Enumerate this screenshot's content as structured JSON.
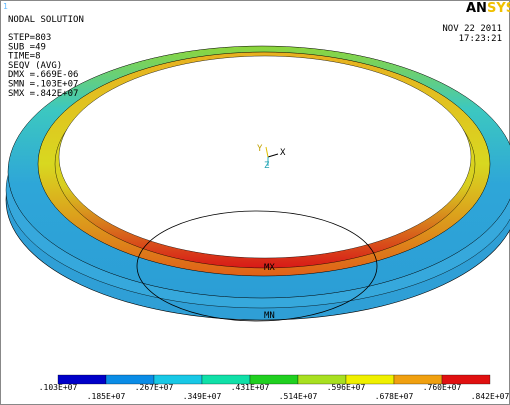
{
  "window_number": "1",
  "header": {
    "title": "NODAL SOLUTION",
    "lines": [
      "STEP=803",
      "SUB =49",
      "TIME=8",
      "SEQV     (AVG)",
      "DMX =.669E-06",
      "SMN =.103E+07",
      "SMX =.842E+07"
    ]
  },
  "logo": {
    "left": "AN",
    "right": "SYS"
  },
  "date": "NOV 22 2011",
  "time": "17:23:21",
  "markers": {
    "max": "MX",
    "min": "MN"
  },
  "triad": {
    "x": "X",
    "y": "Y",
    "z": "Z"
  },
  "legend": {
    "colors": [
      "#0000c8",
      "#0a8ce6",
      "#18c8e6",
      "#10e0a8",
      "#20d020",
      "#a8e020",
      "#f0f000",
      "#f0a010",
      "#e01010"
    ],
    "labels": [
      ".103E+07",
      ".185E+07",
      ".267E+07",
      ".349E+07",
      ".431E+07",
      ".514E+07",
      ".596E+07",
      ".678E+07",
      ".760E+07",
      ".842E+07"
    ]
  }
}
